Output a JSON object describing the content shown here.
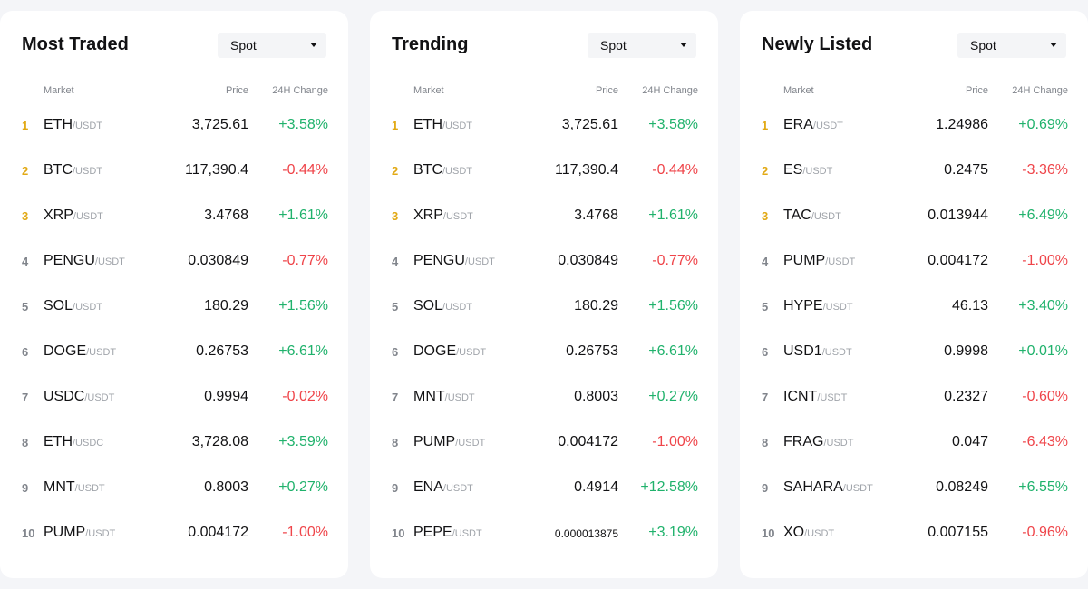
{
  "colors": {
    "up": "#20b26c",
    "down": "#ef454a",
    "rank_top": "#e2a914",
    "muted": "#81858c"
  },
  "headers": {
    "market": "Market",
    "price": "Price",
    "change": "24H Change"
  },
  "panels": [
    {
      "title": "Most Traded",
      "filter": "Spot",
      "rows": [
        {
          "rank": "1",
          "base": "ETH",
          "quote": "/USDT",
          "price": "3,725.61",
          "change": "+3.58%"
        },
        {
          "rank": "2",
          "base": "BTC",
          "quote": "/USDT",
          "price": "117,390.4",
          "change": "-0.44%"
        },
        {
          "rank": "3",
          "base": "XRP",
          "quote": "/USDT",
          "price": "3.4768",
          "change": "+1.61%"
        },
        {
          "rank": "4",
          "base": "PENGU",
          "quote": "/USDT",
          "price": "0.030849",
          "change": "-0.77%"
        },
        {
          "rank": "5",
          "base": "SOL",
          "quote": "/USDT",
          "price": "180.29",
          "change": "+1.56%"
        },
        {
          "rank": "6",
          "base": "DOGE",
          "quote": "/USDT",
          "price": "0.26753",
          "change": "+6.61%"
        },
        {
          "rank": "7",
          "base": "USDC",
          "quote": "/USDT",
          "price": "0.9994",
          "change": "-0.02%"
        },
        {
          "rank": "8",
          "base": "ETH",
          "quote": "/USDC",
          "price": "3,728.08",
          "change": "+3.59%"
        },
        {
          "rank": "9",
          "base": "MNT",
          "quote": "/USDT",
          "price": "0.8003",
          "change": "+0.27%"
        },
        {
          "rank": "10",
          "base": "PUMP",
          "quote": "/USDT",
          "price": "0.004172",
          "change": "-1.00%"
        }
      ]
    },
    {
      "title": "Trending",
      "filter": "Spot",
      "rows": [
        {
          "rank": "1",
          "base": "ETH",
          "quote": "/USDT",
          "price": "3,725.61",
          "change": "+3.58%"
        },
        {
          "rank": "2",
          "base": "BTC",
          "quote": "/USDT",
          "price": "117,390.4",
          "change": "-0.44%"
        },
        {
          "rank": "3",
          "base": "XRP",
          "quote": "/USDT",
          "price": "3.4768",
          "change": "+1.61%"
        },
        {
          "rank": "4",
          "base": "PENGU",
          "quote": "/USDT",
          "price": "0.030849",
          "change": "-0.77%"
        },
        {
          "rank": "5",
          "base": "SOL",
          "quote": "/USDT",
          "price": "180.29",
          "change": "+1.56%"
        },
        {
          "rank": "6",
          "base": "DOGE",
          "quote": "/USDT",
          "price": "0.26753",
          "change": "+6.61%"
        },
        {
          "rank": "7",
          "base": "MNT",
          "quote": "/USDT",
          "price": "0.8003",
          "change": "+0.27%"
        },
        {
          "rank": "8",
          "base": "PUMP",
          "quote": "/USDT",
          "price": "0.004172",
          "change": "-1.00%"
        },
        {
          "rank": "9",
          "base": "ENA",
          "quote": "/USDT",
          "price": "0.4914",
          "change": "+12.58%"
        },
        {
          "rank": "10",
          "base": "PEPE",
          "quote": "/USDT",
          "price": "0.000013875",
          "change": "+3.19%"
        }
      ]
    },
    {
      "title": "Newly Listed",
      "filter": "Spot",
      "rows": [
        {
          "rank": "1",
          "base": "ERA",
          "quote": "/USDT",
          "price": "1.24986",
          "change": "+0.69%"
        },
        {
          "rank": "2",
          "base": "ES",
          "quote": "/USDT",
          "price": "0.2475",
          "change": "-3.36%"
        },
        {
          "rank": "3",
          "base": "TAC",
          "quote": "/USDT",
          "price": "0.013944",
          "change": "+6.49%"
        },
        {
          "rank": "4",
          "base": "PUMP",
          "quote": "/USDT",
          "price": "0.004172",
          "change": "-1.00%"
        },
        {
          "rank": "5",
          "base": "HYPE",
          "quote": "/USDT",
          "price": "46.13",
          "change": "+3.40%"
        },
        {
          "rank": "6",
          "base": "USD1",
          "quote": "/USDT",
          "price": "0.9998",
          "change": "+0.01%"
        },
        {
          "rank": "7",
          "base": "ICNT",
          "quote": "/USDT",
          "price": "0.2327",
          "change": "-0.60%"
        },
        {
          "rank": "8",
          "base": "FRAG",
          "quote": "/USDT",
          "price": "0.047",
          "change": "-6.43%"
        },
        {
          "rank": "9",
          "base": "SAHARA",
          "quote": "/USDT",
          "price": "0.08249",
          "change": "+6.55%"
        },
        {
          "rank": "10",
          "base": "XO",
          "quote": "/USDT",
          "price": "0.007155",
          "change": "-0.96%"
        }
      ]
    }
  ]
}
